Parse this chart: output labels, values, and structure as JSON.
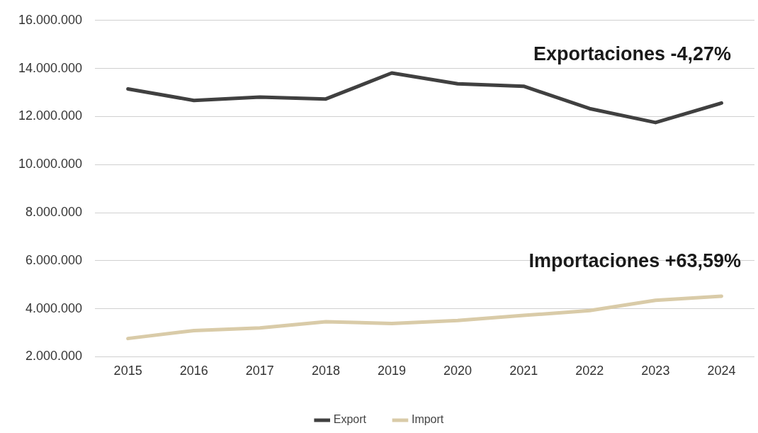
{
  "chart_data": {
    "type": "line",
    "categories": [
      "2015",
      "2016",
      "2017",
      "2018",
      "2019",
      "2020",
      "2021",
      "2022",
      "2023",
      "2024"
    ],
    "series": [
      {
        "name": "Export",
        "color": "#404040",
        "values": [
          13150000,
          12670000,
          12810000,
          12730000,
          13810000,
          13360000,
          13260000,
          12330000,
          11750000,
          12560000
        ]
      },
      {
        "name": "Import",
        "color": "#d9cba8",
        "values": [
          2760000,
          3090000,
          3200000,
          3460000,
          3380000,
          3510000,
          3720000,
          3920000,
          4350000,
          4520000
        ]
      }
    ],
    "ylim": [
      2000000,
      16000000
    ],
    "yticks": [
      {
        "value": 2000000,
        "label": "2.000.000"
      },
      {
        "value": 4000000,
        "label": "4.000.000"
      },
      {
        "value": 6000000,
        "label": "6.000.000"
      },
      {
        "value": 8000000,
        "label": "8.000.000"
      },
      {
        "value": 10000000,
        "label": "10.000.000"
      },
      {
        "value": 12000000,
        "label": "12.000.000"
      },
      {
        "value": 14000000,
        "label": "14.000.000"
      },
      {
        "value": 16000000,
        "label": "16.000.000"
      }
    ],
    "grid": "y",
    "legend": "bottom",
    "marker": "none",
    "line_style": "solid",
    "annotations": [
      "Exportaciones -4,27%",
      "Importaciones +63,59%"
    ]
  }
}
